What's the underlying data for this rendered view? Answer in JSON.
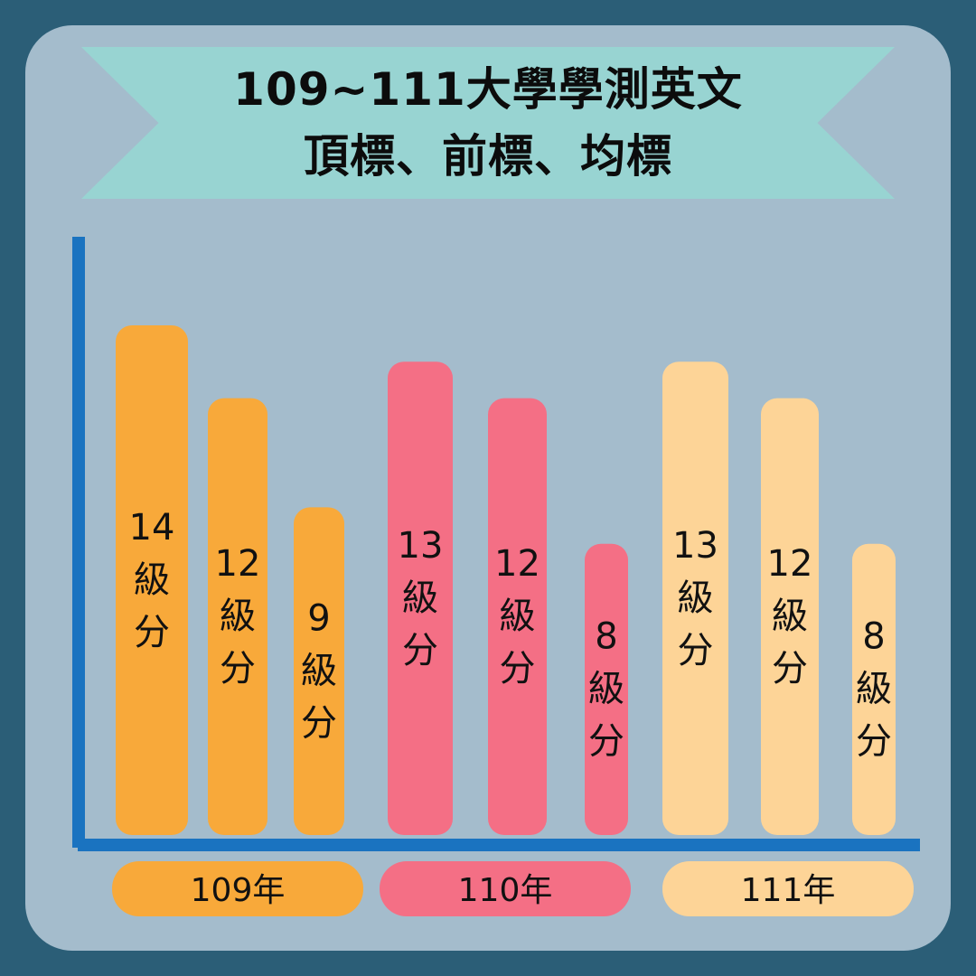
{
  "title": {
    "line1": "109~111大學學測英文",
    "line2": "頂標、前標、均標"
  },
  "colors": {
    "background": "#2b5e77",
    "panel": "#a4bccc",
    "ribbon": "#98d4d2",
    "axis": "#1a73c0",
    "y109": "#f8a93a",
    "y110": "#f46f85",
    "y111": "#fdd497"
  },
  "chart_data": {
    "type": "bar",
    "categories": [
      "109年",
      "110年",
      "111年"
    ],
    "series": [
      {
        "values": [
          14,
          13,
          13
        ]
      },
      {
        "values": [
          12,
          12,
          12
        ]
      },
      {
        "values": [
          9,
          8,
          8
        ]
      }
    ],
    "value_label_suffix": [
      "級",
      "分"
    ],
    "ylim": [
      0,
      15
    ],
    "grid": false,
    "legend": "none"
  }
}
